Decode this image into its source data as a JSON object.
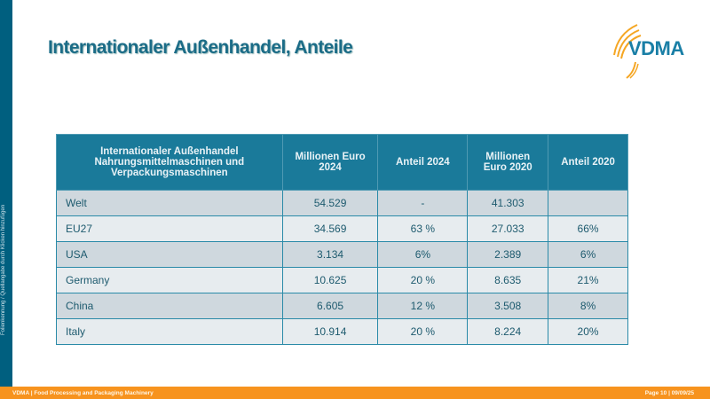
{
  "title": "Internationaler Außenhandel, Anteile",
  "logo": "VDMA",
  "sidebar_text": "Folienkennung / Quellangabe durch Klicken hinzufügen",
  "table": {
    "headers": [
      "Internationaler Außenhandel Nahrungsmittelmaschinen und Verpackungsmaschinen",
      "Millionen Euro 2024",
      "Anteil 2024",
      "Millionen Euro 2020",
      "Anteil 2020"
    ],
    "rows": [
      [
        "Welt",
        "54.529",
        "-",
        "41.303",
        ""
      ],
      [
        "EU27",
        "34.569",
        "63 %",
        "27.033",
        "66%"
      ],
      [
        "USA",
        "3.134",
        "6%",
        "2.389",
        "6%"
      ],
      [
        "Germany",
        "10.625",
        "20 %",
        "8.635",
        "21%"
      ],
      [
        "China",
        "6.605",
        "12 %",
        "3.508",
        "8%"
      ],
      [
        "Italy",
        "10.914",
        "20 %",
        "8.224",
        "20%"
      ]
    ]
  },
  "footer": {
    "left": "VDMA | Food Processing and Packaging Machinery",
    "right": "Page 10 | 09/09/25"
  },
  "colors": {
    "primary": "#005f7f",
    "header": "#1a7a9a",
    "accent": "#f7931e"
  }
}
